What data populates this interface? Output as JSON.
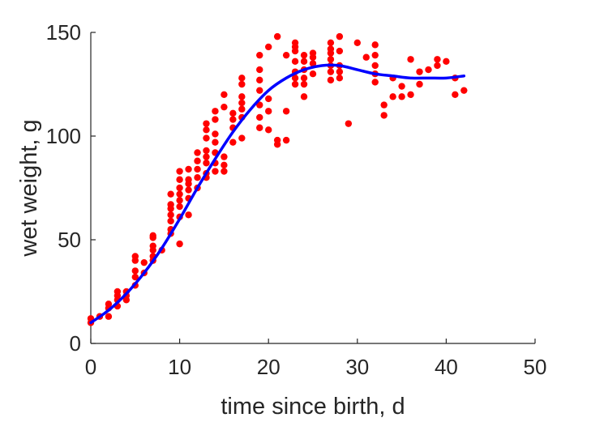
{
  "chart_data": {
    "type": "scatter",
    "xlabel": "time since birth, d",
    "ylabel": "wet weight, g",
    "xlim": [
      0,
      50
    ],
    "ylim": [
      0,
      150
    ],
    "xticks": [
      0,
      10,
      20,
      30,
      40,
      50
    ],
    "yticks": [
      0,
      50,
      100,
      150
    ],
    "grid": false,
    "legend": "none",
    "series": [
      {
        "type": "scatter",
        "color": "#ff0000",
        "points": [
          [
            0,
            10
          ],
          [
            0,
            12
          ],
          [
            1,
            13
          ],
          [
            2,
            13
          ],
          [
            2,
            17
          ],
          [
            2,
            19
          ],
          [
            3,
            18
          ],
          [
            3,
            21
          ],
          [
            3,
            23
          ],
          [
            3,
            25
          ],
          [
            4,
            21
          ],
          [
            4,
            23
          ],
          [
            4,
            25
          ],
          [
            5,
            28
          ],
          [
            5,
            32
          ],
          [
            5,
            35
          ],
          [
            5,
            40
          ],
          [
            5,
            42
          ],
          [
            6,
            34
          ],
          [
            6,
            39
          ],
          [
            7,
            40
          ],
          [
            7,
            42
          ],
          [
            7,
            45
          ],
          [
            7,
            47
          ],
          [
            7,
            51
          ],
          [
            7,
            52
          ],
          [
            8,
            45
          ],
          [
            9,
            53
          ],
          [
            9,
            55
          ],
          [
            9,
            59
          ],
          [
            9,
            62
          ],
          [
            9,
            65
          ],
          [
            9,
            67
          ],
          [
            9,
            72
          ],
          [
            10,
            48
          ],
          [
            10,
            61
          ],
          [
            10,
            66
          ],
          [
            10,
            69
          ],
          [
            10,
            72
          ],
          [
            10,
            75
          ],
          [
            10,
            79
          ],
          [
            10,
            83
          ],
          [
            11,
            62
          ],
          [
            11,
            70
          ],
          [
            11,
            74
          ],
          [
            11,
            77
          ],
          [
            11,
            79
          ],
          [
            11,
            84
          ],
          [
            12,
            75
          ],
          [
            12,
            80
          ],
          [
            12,
            84
          ],
          [
            12,
            88
          ],
          [
            12,
            92
          ],
          [
            13,
            80
          ],
          [
            13,
            82
          ],
          [
            13,
            87
          ],
          [
            13,
            90
          ],
          [
            13,
            93
          ],
          [
            13,
            99
          ],
          [
            13,
            103
          ],
          [
            13,
            106
          ],
          [
            14,
            83
          ],
          [
            14,
            87
          ],
          [
            14,
            92
          ],
          [
            14,
            97
          ],
          [
            14,
            101
          ],
          [
            14,
            108
          ],
          [
            14,
            112
          ],
          [
            15,
            83
          ],
          [
            15,
            86
          ],
          [
            15,
            90
          ],
          [
            15,
            114
          ],
          [
            15,
            120
          ],
          [
            16,
            97
          ],
          [
            16,
            104
          ],
          [
            16,
            108
          ],
          [
            16,
            111
          ],
          [
            17,
            99
          ],
          [
            17,
            109
          ],
          [
            17,
            113
          ],
          [
            17,
            116
          ],
          [
            17,
            119
          ],
          [
            17,
            125
          ],
          [
            17,
            128
          ],
          [
            19,
            104
          ],
          [
            19,
            109
          ],
          [
            19,
            115
          ],
          [
            19,
            122
          ],
          [
            19,
            127
          ],
          [
            19,
            132
          ],
          [
            19,
            139
          ],
          [
            20,
            103
          ],
          [
            20,
            112
          ],
          [
            20,
            118
          ],
          [
            20,
            143
          ],
          [
            21,
            96
          ],
          [
            21,
            98
          ],
          [
            21,
            148
          ],
          [
            22,
            98
          ],
          [
            22,
            112
          ],
          [
            22,
            139
          ],
          [
            23,
            125
          ],
          [
            23,
            128
          ],
          [
            23,
            131
          ],
          [
            23,
            136
          ],
          [
            23,
            141
          ],
          [
            23,
            143
          ],
          [
            23,
            145
          ],
          [
            24,
            119
          ],
          [
            24,
            125
          ],
          [
            24,
            128
          ],
          [
            24,
            132
          ],
          [
            24,
            136
          ],
          [
            24,
            139
          ],
          [
            25,
            130
          ],
          [
            25,
            135
          ],
          [
            25,
            138
          ],
          [
            25,
            140
          ],
          [
            27,
            127
          ],
          [
            27,
            131
          ],
          [
            27,
            134
          ],
          [
            27,
            137
          ],
          [
            27,
            140
          ],
          [
            27,
            142
          ],
          [
            27,
            145
          ],
          [
            28,
            128
          ],
          [
            28,
            131
          ],
          [
            28,
            134
          ],
          [
            28,
            141
          ],
          [
            28,
            148
          ],
          [
            29,
            106
          ],
          [
            30,
            145
          ],
          [
            31,
            138
          ],
          [
            32,
            126
          ],
          [
            32,
            130
          ],
          [
            32,
            134
          ],
          [
            32,
            139
          ],
          [
            32,
            144
          ],
          [
            33,
            110
          ],
          [
            33,
            115
          ],
          [
            34,
            119
          ],
          [
            34,
            128
          ],
          [
            35,
            119
          ],
          [
            35,
            124
          ],
          [
            36,
            120
          ],
          [
            36,
            137
          ],
          [
            37,
            125
          ],
          [
            37,
            131
          ],
          [
            38,
            132
          ],
          [
            39,
            134
          ],
          [
            39,
            137
          ],
          [
            40,
            136
          ],
          [
            41,
            120
          ],
          [
            41,
            128
          ],
          [
            42,
            122
          ]
        ]
      },
      {
        "type": "line",
        "color": "#0000ff",
        "points": [
          [
            0,
            10
          ],
          [
            2,
            16
          ],
          [
            4,
            24
          ],
          [
            6,
            34
          ],
          [
            8,
            46
          ],
          [
            10,
            60
          ],
          [
            12,
            75
          ],
          [
            14,
            89
          ],
          [
            16,
            102
          ],
          [
            18,
            113
          ],
          [
            20,
            122
          ],
          [
            22,
            128
          ],
          [
            24,
            132
          ],
          [
            26,
            134
          ],
          [
            28,
            134
          ],
          [
            30,
            132
          ],
          [
            32,
            130
          ],
          [
            34,
            129
          ],
          [
            36,
            128
          ],
          [
            38,
            128
          ],
          [
            40,
            128
          ],
          [
            42,
            129
          ]
        ]
      }
    ]
  }
}
